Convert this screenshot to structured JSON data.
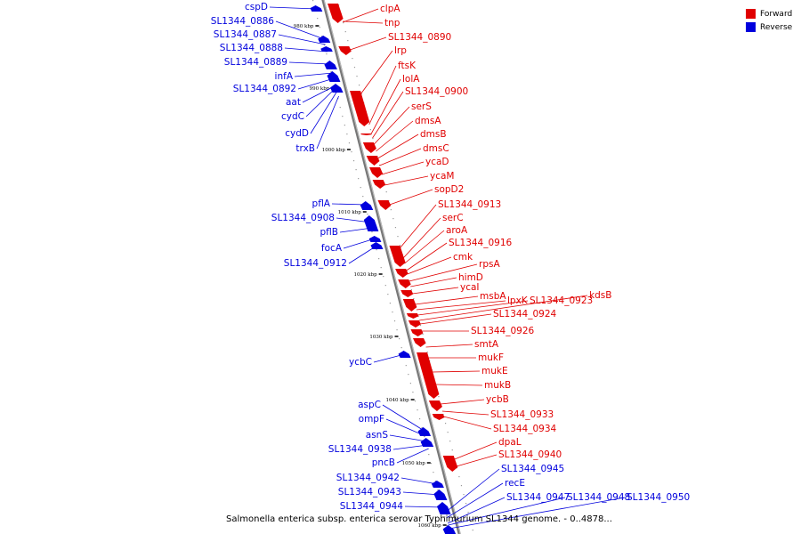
{
  "caption": "Salmonella enterica subsp. enterica serovar Typhimurium SL1344 genome. - 0..4878...",
  "legend": {
    "forward_label": "Forward",
    "reverse_label": "Reverse",
    "forward_color": "#e00000",
    "reverse_color": "#0000dd"
  },
  "ticks": [
    "980 kbp",
    "990 kbp",
    "1000 kbp",
    "1010 kbp",
    "1020 kbp",
    "1030 kbp",
    "1040 kbp",
    "1050 kbp",
    "1060 kbp"
  ],
  "forward_genes": [
    "clpA",
    "tnp",
    "SL1344_0890",
    "lrp",
    "ftsK",
    "lolA",
    "SL1344_0900",
    "serS",
    "dmsA",
    "dmsB",
    "dmsC",
    "ycaD",
    "ycaM",
    "sopD2",
    "SL1344_0913",
    "serC",
    "aroA",
    "SL1344_0916",
    "cmk",
    "rpsA",
    "himD",
    "ycaI",
    "msbA",
    "lpxK",
    "SL1344_0923",
    "kdsB",
    "SL1344_0924",
    "SL1344_0926",
    "smtA",
    "mukF",
    "mukE",
    "mukB",
    "ycbB",
    "SL1344_0933",
    "SL1344_0934",
    "dpaL",
    "SL1344_0940"
  ],
  "reverse_genes": [
    "cspD",
    "SL1344_0886",
    "SL1344_0887",
    "SL1344_0888",
    "SL1344_0889",
    "infA",
    "SL1344_0892",
    "aat",
    "cydC",
    "cydD",
    "trxB",
    "pflA",
    "SL1344_0908",
    "pflB",
    "focA",
    "SL1344_0912",
    "ycbC",
    "aspC",
    "ompF",
    "asnS",
    "SL1344_0938",
    "pncB",
    "SL1344_0942",
    "SL1344_0943",
    "SL1344_0944",
    "SL1344_0945",
    "recE",
    "SL1344_0947",
    "SL1344_0948",
    "SL1344_0950"
  ]
}
